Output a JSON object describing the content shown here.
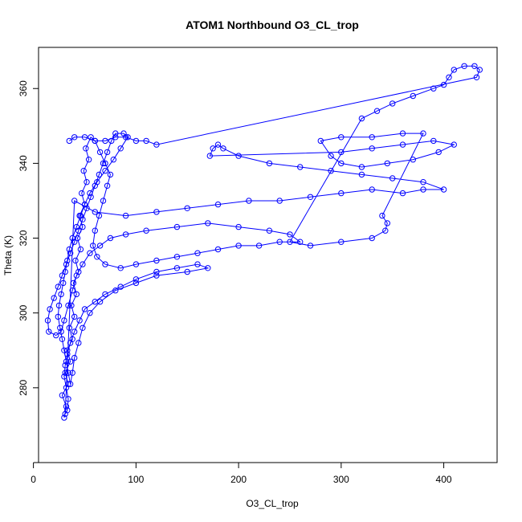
{
  "chart_data": {
    "type": "scatter",
    "title": "ATOM1 Northbound O3_CL_trop",
    "xlabel": "O3_CL_trop",
    "ylabel": "Theta (K)",
    "xlim": [
      5,
      452
    ],
    "ylim": [
      260,
      371
    ],
    "xticks": [
      0,
      100,
      200,
      300,
      400
    ],
    "yticks": [
      280,
      300,
      320,
      340,
      360
    ],
    "grid": false,
    "legend": "none",
    "marker": "open-circle",
    "connected": true,
    "color": "#0000ff",
    "series": [
      {
        "points": [
          [
            30,
            272
          ],
          [
            32,
            275
          ],
          [
            28,
            278
          ],
          [
            34,
            281
          ],
          [
            31,
            284
          ],
          [
            36,
            287
          ],
          [
            33,
            290
          ],
          [
            38,
            293
          ],
          [
            35,
            296
          ],
          [
            40,
            299
          ],
          [
            37,
            302
          ],
          [
            42,
            305
          ],
          [
            39,
            308
          ],
          [
            44,
            311
          ],
          [
            41,
            314
          ],
          [
            46,
            317
          ],
          [
            43,
            320
          ],
          [
            48,
            323
          ],
          [
            45,
            326
          ],
          [
            50,
            329
          ],
          [
            47,
            332
          ],
          [
            52,
            335
          ],
          [
            49,
            338
          ],
          [
            54,
            341
          ],
          [
            51,
            344
          ],
          [
            56,
            347
          ],
          [
            60,
            346
          ],
          [
            65,
            343
          ],
          [
            70,
            340
          ],
          [
            75,
            337
          ],
          [
            72,
            334
          ],
          [
            68,
            330
          ],
          [
            64,
            326
          ],
          [
            60,
            322
          ],
          [
            58,
            318
          ],
          [
            62,
            315
          ],
          [
            70,
            313
          ],
          [
            85,
            312
          ],
          [
            100,
            313
          ],
          [
            120,
            314
          ],
          [
            140,
            315
          ],
          [
            160,
            316
          ],
          [
            180,
            317
          ],
          [
            200,
            318
          ],
          [
            220,
            318
          ],
          [
            240,
            319
          ],
          [
            260,
            319
          ],
          [
            250,
            321
          ],
          [
            230,
            322
          ],
          [
            200,
            323
          ],
          [
            170,
            324
          ],
          [
            140,
            323
          ],
          [
            110,
            322
          ],
          [
            90,
            321
          ],
          [
            75,
            320
          ],
          [
            65,
            318
          ],
          [
            55,
            316
          ],
          [
            48,
            313
          ],
          [
            42,
            310
          ],
          [
            38,
            306
          ],
          [
            34,
            302
          ],
          [
            30,
            298
          ],
          [
            27,
            295
          ],
          [
            22,
            294
          ],
          [
            15,
            295
          ],
          [
            14,
            298
          ],
          [
            16,
            301
          ],
          [
            20,
            304
          ],
          [
            24,
            307
          ],
          [
            28,
            310
          ],
          [
            32,
            313
          ],
          [
            36,
            316
          ],
          [
            40,
            319
          ],
          [
            44,
            322
          ],
          [
            48,
            325
          ],
          [
            52,
            328
          ],
          [
            56,
            331
          ],
          [
            60,
            334
          ],
          [
            64,
            337
          ],
          [
            68,
            340
          ],
          [
            72,
            343
          ],
          [
            76,
            346
          ],
          [
            80,
            348
          ],
          [
            88,
            348
          ],
          [
            92,
            347
          ],
          [
            85,
            344
          ],
          [
            78,
            341
          ],
          [
            70,
            338
          ],
          [
            62,
            335
          ],
          [
            55,
            332
          ],
          [
            50,
            329
          ],
          [
            46,
            326
          ],
          [
            42,
            323
          ],
          [
            38,
            320
          ],
          [
            35,
            317
          ],
          [
            33,
            314
          ],
          [
            31,
            311
          ],
          [
            29,
            308
          ],
          [
            27,
            305
          ],
          [
            25,
            302
          ],
          [
            24,
            299
          ],
          [
            26,
            296
          ],
          [
            28,
            293
          ],
          [
            30,
            290
          ],
          [
            32,
            287
          ],
          [
            34,
            284
          ],
          [
            36,
            281
          ],
          [
            38,
            284
          ],
          [
            40,
            288
          ],
          [
            44,
            292
          ],
          [
            48,
            296
          ],
          [
            55,
            300
          ],
          [
            65,
            303
          ],
          [
            80,
            306
          ],
          [
            100,
            308
          ],
          [
            120,
            310
          ],
          [
            150,
            311
          ],
          [
            170,
            312
          ],
          [
            160,
            313
          ],
          [
            140,
            312
          ],
          [
            120,
            311
          ],
          [
            100,
            309
          ],
          [
            85,
            307
          ],
          [
            70,
            305
          ],
          [
            60,
            303
          ],
          [
            50,
            301
          ],
          [
            45,
            298
          ],
          [
            40,
            295
          ],
          [
            36,
            292
          ],
          [
            33,
            289
          ],
          [
            31,
            286
          ],
          [
            30,
            283
          ],
          [
            32,
            280
          ],
          [
            34,
            277
          ],
          [
            33,
            274
          ],
          [
            31,
            273
          ],
          [
            40,
            330
          ],
          [
            60,
            327
          ],
          [
            90,
            326
          ],
          [
            120,
            327
          ],
          [
            150,
            328
          ],
          [
            180,
            329
          ],
          [
            210,
            330
          ],
          [
            240,
            330
          ],
          [
            270,
            331
          ],
          [
            300,
            332
          ],
          [
            330,
            333
          ],
          [
            360,
            332
          ],
          [
            380,
            333
          ],
          [
            400,
            333
          ],
          [
            380,
            335
          ],
          [
            350,
            336
          ],
          [
            320,
            337
          ],
          [
            290,
            338
          ],
          [
            260,
            339
          ],
          [
            230,
            340
          ],
          [
            200,
            342
          ],
          [
            185,
            344
          ],
          [
            180,
            345
          ],
          [
            175,
            344
          ],
          [
            172,
            342
          ],
          [
            300,
            343
          ],
          [
            330,
            344
          ],
          [
            360,
            345
          ],
          [
            390,
            346
          ],
          [
            410,
            345
          ],
          [
            395,
            343
          ],
          [
            370,
            341
          ],
          [
            345,
            340
          ],
          [
            320,
            339
          ],
          [
            300,
            340
          ],
          [
            290,
            342
          ],
          [
            280,
            346
          ],
          [
            300,
            347
          ],
          [
            330,
            347
          ],
          [
            360,
            348
          ],
          [
            380,
            348
          ],
          [
            340,
            326
          ],
          [
            345,
            324
          ],
          [
            343,
            322
          ],
          [
            330,
            320
          ],
          [
            300,
            319
          ],
          [
            270,
            318
          ],
          [
            250,
            319
          ],
          [
            320,
            352
          ],
          [
            335,
            354
          ],
          [
            350,
            356
          ],
          [
            370,
            358
          ],
          [
            390,
            360
          ],
          [
            400,
            361
          ],
          [
            405,
            363
          ],
          [
            410,
            365
          ],
          [
            420,
            366
          ],
          [
            430,
            366
          ],
          [
            435,
            365
          ],
          [
            432,
            363
          ],
          [
            120,
            345
          ],
          [
            110,
            346
          ],
          [
            100,
            346
          ],
          [
            90,
            347
          ],
          [
            80,
            347
          ],
          [
            70,
            346
          ],
          [
            60,
            346
          ],
          [
            50,
            347
          ],
          [
            40,
            347
          ],
          [
            35,
            346
          ]
        ]
      }
    ]
  }
}
